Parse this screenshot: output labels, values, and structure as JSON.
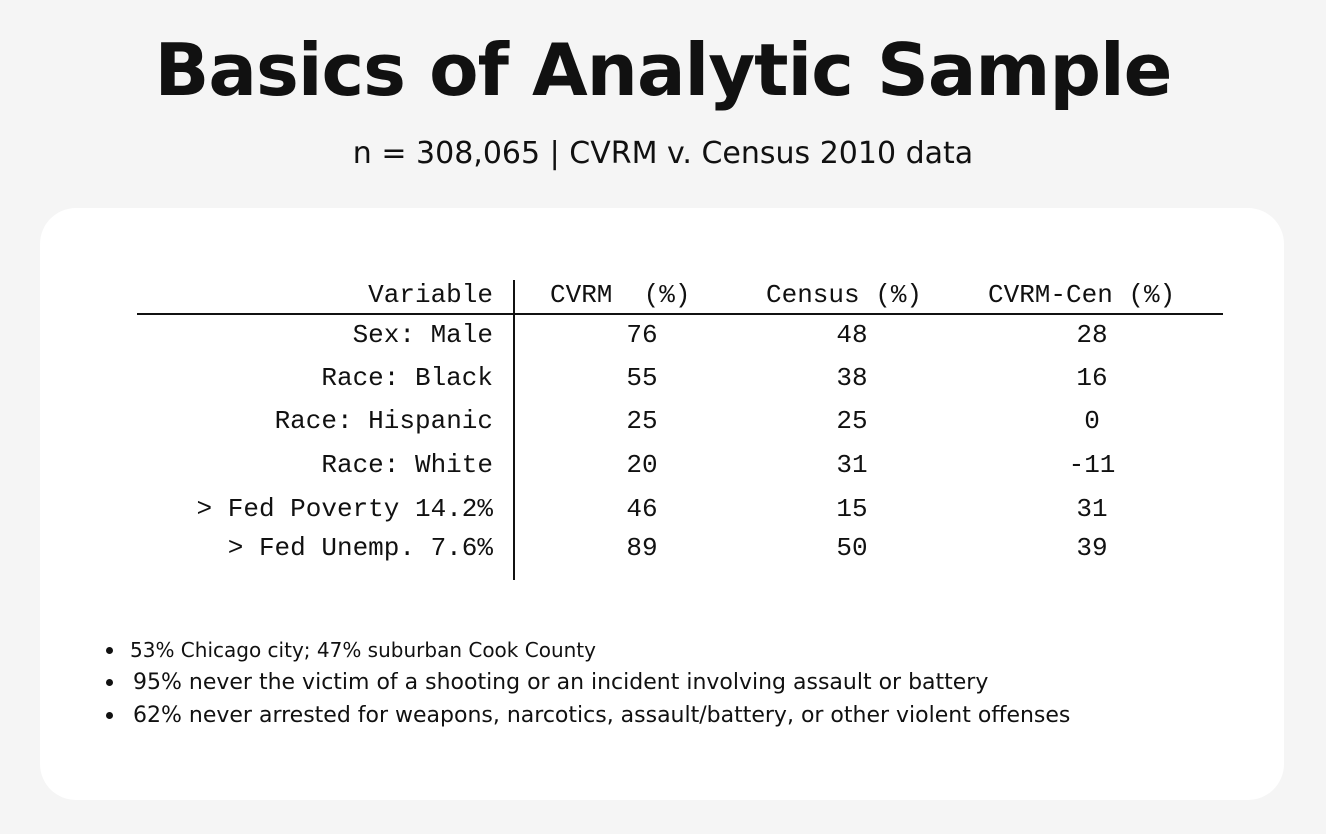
{
  "title": "Basics of Analytic Sample",
  "subtitle": "n = 308,065 | CVRM v. Census 2010 data",
  "table": {
    "headers": [
      "Variable",
      "CVRM  (%)",
      "Census (%)",
      "CVRM-Cen (%)"
    ],
    "rows": [
      {
        "variable": "Sex: Male",
        "cvrm": "76",
        "census": "48",
        "diff": "28"
      },
      {
        "variable": "Race: Black",
        "cvrm": "55",
        "census": "38",
        "diff": "16"
      },
      {
        "variable": "Race: Hispanic",
        "cvrm": "25",
        "census": "25",
        "diff": "0"
      },
      {
        "variable": "Race: White",
        "cvrm": "20",
        "census": "31",
        "diff": "-11"
      },
      {
        "variable": "> Fed Poverty 14.2%",
        "cvrm": "46",
        "census": "15",
        "diff": "31"
      },
      {
        "variable": "> Fed Unemp. 7.6%",
        "cvrm": "89",
        "census": "50",
        "diff": "39"
      }
    ]
  },
  "bullets": [
    "53% Chicago city; 47% suburban Cook County",
    "95% never the victim of a shooting or an incident involving assault or battery",
    "62% never arrested for weapons, narcotics, assault/battery, or other violent offenses"
  ]
}
